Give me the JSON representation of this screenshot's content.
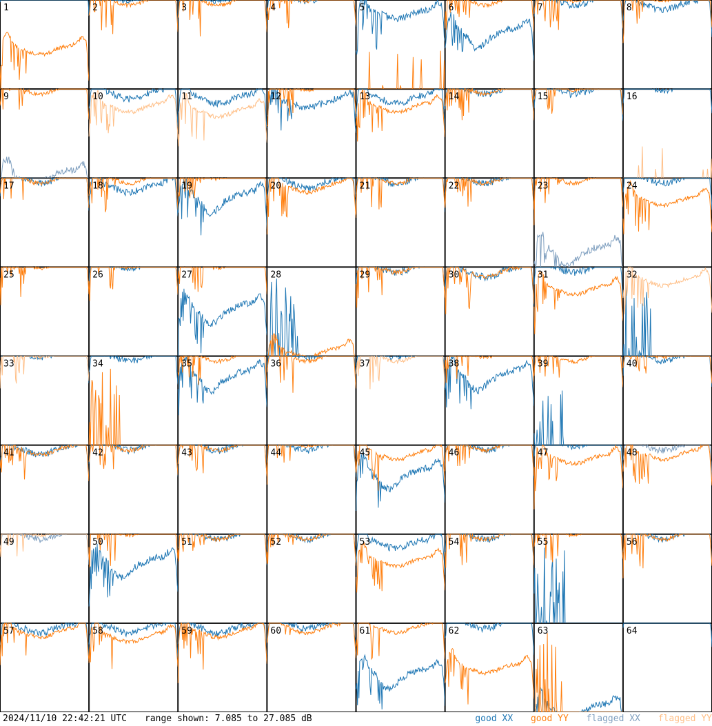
{
  "chart_data": {
    "type": "line",
    "panels": 64,
    "columns": 8,
    "rows": 8,
    "xlabel": "",
    "ylabel": "",
    "ylim": [
      7.085,
      27.085
    ],
    "grid": false,
    "panel_labels": [
      "1",
      "2",
      "3",
      "4",
      "5",
      "6",
      "7",
      "8",
      "9",
      "10",
      "11",
      "12",
      "13",
      "14",
      "15",
      "16",
      "17",
      "18",
      "19",
      "20",
      "21",
      "22",
      "23",
      "24",
      "25",
      "26",
      "27",
      "28",
      "29",
      "30",
      "31",
      "32",
      "33",
      "34",
      "35",
      "36",
      "37",
      "38",
      "39",
      "40",
      "41",
      "42",
      "43",
      "44",
      "45",
      "46",
      "47",
      "48",
      "49",
      "50",
      "51",
      "52",
      "53",
      "54",
      "55",
      "56",
      "57",
      "58",
      "59",
      "60",
      "61",
      "62",
      "63",
      "64"
    ],
    "series": [
      {
        "name": "good XX",
        "color": "#1f77b4"
      },
      {
        "name": "good YY",
        "color": "#ff7f0e"
      },
      {
        "name": "flagged XX",
        "color": "#7f9fbf"
      },
      {
        "name": "flagged YY",
        "color": "#ffbf87"
      }
    ],
    "panel_state": {
      "xx_flagged": [
        9,
        23,
        48,
        49
      ],
      "yy_flagged": [
        10,
        11,
        16,
        32,
        33,
        37,
        49
      ],
      "yy_low": [
        5,
        16
      ],
      "xx_dead": [
        28,
        32,
        39,
        55
      ],
      "yy_dead": [
        34,
        63
      ],
      "yy_missing": [
        64
      ],
      "xx_hidden": [
        25
      ],
      "approx_level_xx": [
        25,
        22,
        22,
        22,
        18,
        14,
        21,
        20,
        2,
        20,
        19,
        18,
        19,
        21,
        21,
        22,
        21,
        19,
        17,
        20,
        21,
        21,
        5,
        21,
        23,
        22,
        12,
        2,
        21,
        20,
        21,
        18,
        22,
        21,
        17,
        22,
        22,
        17,
        2,
        21,
        20,
        21,
        21,
        21,
        15,
        21,
        22,
        21,
        21,
        15,
        21,
        21,
        19,
        21,
        2,
        21,
        20,
        20,
        20,
        21,
        10,
        21,
        2,
        23
      ],
      "approx_level_yy": [
        10,
        21,
        21,
        22,
        0,
        21,
        22,
        22,
        21,
        17,
        16,
        22,
        17,
        21,
        22,
        0,
        21,
        21,
        22,
        19,
        21,
        21,
        21,
        16,
        22,
        22,
        22,
        2,
        21,
        20,
        16,
        18,
        22,
        2,
        21,
        21,
        21,
        22,
        21,
        22,
        20,
        21,
        21,
        22,
        19,
        21,
        18,
        19,
        22,
        22,
        21,
        21,
        15,
        21,
        22,
        21,
        19,
        18,
        19,
        20,
        20,
        11,
        2,
        0
      ]
    },
    "footer": {
      "timestamp": "2024/11/10 22:42:21 UTC",
      "range": "range shown: 7.085 to 27.085 dB"
    }
  }
}
